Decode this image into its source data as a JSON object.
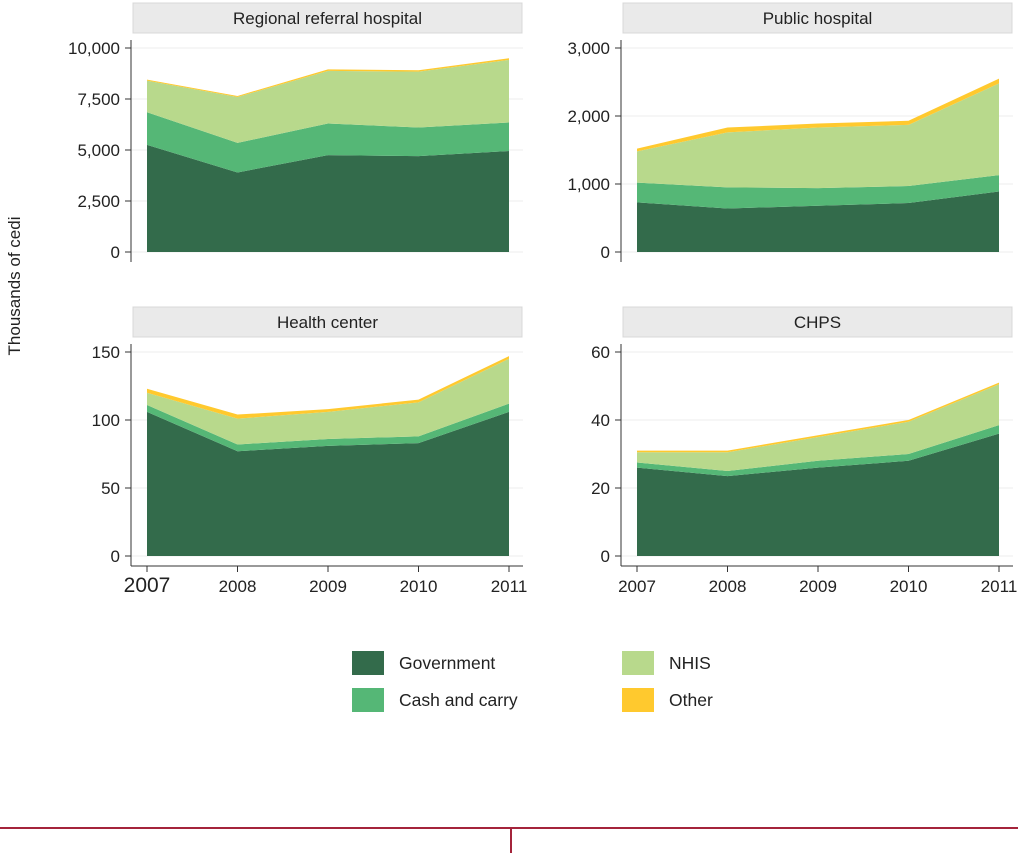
{
  "y_axis_title": "Thousands of cedi",
  "legend": {
    "items": [
      {
        "label": "Government",
        "color": "#336b4b"
      },
      {
        "label": "NHIS",
        "color": "#b8d98c"
      },
      {
        "label": "Cash and carry",
        "color": "#55b776"
      },
      {
        "label": "Other",
        "color": "#ffc92e"
      }
    ]
  },
  "chart_data": [
    {
      "type": "area",
      "stacked": true,
      "title": "Regional referral hospital",
      "x": [
        2007,
        2008,
        2009,
        2010,
        2011
      ],
      "ylim": [
        0,
        10000
      ],
      "yticks": [
        0,
        2500,
        5000,
        7500,
        10000
      ],
      "ytick_labels": [
        "0",
        "2,500",
        "5,000",
        "7,500",
        "10,000"
      ],
      "xtick_labels": [
        "2007",
        "2008",
        "2009",
        "2010",
        "2011"
      ],
      "series": [
        {
          "name": "Government",
          "values": [
            5250,
            3900,
            4750,
            4700,
            4950
          ]
        },
        {
          "name": "Cash and carry",
          "values": [
            1600,
            1450,
            1550,
            1400,
            1400
          ]
        },
        {
          "name": "NHIS",
          "values": [
            1550,
            2250,
            2580,
            2740,
            3070
          ]
        },
        {
          "name": "Other",
          "values": [
            50,
            50,
            70,
            70,
            80
          ]
        }
      ],
      "grid": true
    },
    {
      "type": "area",
      "stacked": true,
      "title": "Public hospital",
      "x": [
        2007,
        2008,
        2009,
        2010,
        2011
      ],
      "ylim": [
        0,
        3000
      ],
      "yticks": [
        0,
        1000,
        2000,
        3000
      ],
      "ytick_labels": [
        "0",
        "1,000",
        "2,000",
        "3,000"
      ],
      "xtick_labels": [
        "2007",
        "2008",
        "2009",
        "2010",
        "2011"
      ],
      "series": [
        {
          "name": "Government",
          "values": [
            730,
            640,
            680,
            720,
            890
          ]
        },
        {
          "name": "Cash and carry",
          "values": [
            290,
            310,
            260,
            250,
            240
          ]
        },
        {
          "name": "NHIS",
          "values": [
            460,
            810,
            890,
            900,
            1350
          ]
        },
        {
          "name": "Other",
          "values": [
            40,
            70,
            60,
            60,
            70
          ]
        }
      ],
      "grid": true
    },
    {
      "type": "area",
      "stacked": true,
      "title": "Health center",
      "x": [
        2007,
        2008,
        2009,
        2010,
        2011
      ],
      "ylim": [
        0,
        150
      ],
      "yticks": [
        0,
        50,
        100,
        150
      ],
      "ytick_labels": [
        "0",
        "50",
        "100",
        "150"
      ],
      "xtick_labels": [
        "2007",
        "2008",
        "2009",
        "2010",
        "2011"
      ],
      "series": [
        {
          "name": "Government",
          "values": [
            106,
            77,
            81,
            83,
            106
          ]
        },
        {
          "name": "Cash and carry",
          "values": [
            5,
            5,
            5,
            5,
            6
          ]
        },
        {
          "name": "NHIS",
          "values": [
            9,
            19,
            20,
            25,
            33
          ]
        },
        {
          "name": "Other",
          "values": [
            3,
            3,
            2,
            2,
            2
          ]
        }
      ],
      "grid": true
    },
    {
      "type": "area",
      "stacked": true,
      "title": "CHPS",
      "x": [
        2007,
        2008,
        2009,
        2010,
        2011
      ],
      "ylim": [
        0,
        60
      ],
      "yticks": [
        0,
        20,
        40,
        60
      ],
      "ytick_labels": [
        "0",
        "20",
        "40",
        "60"
      ],
      "xtick_labels": [
        "2007",
        "2008",
        "2009",
        "2010",
        "2011"
      ],
      "series": [
        {
          "name": "Government",
          "values": [
            26,
            23.5,
            26,
            28,
            36
          ]
        },
        {
          "name": "Cash and carry",
          "values": [
            1.5,
            1.5,
            2,
            2,
            2.5
          ]
        },
        {
          "name": "NHIS",
          "values": [
            3,
            5.5,
            7,
            9.5,
            12
          ]
        },
        {
          "name": "Other",
          "values": [
            0.5,
            0.5,
            0.5,
            0.5,
            0.5
          ]
        }
      ],
      "grid": true
    }
  ]
}
